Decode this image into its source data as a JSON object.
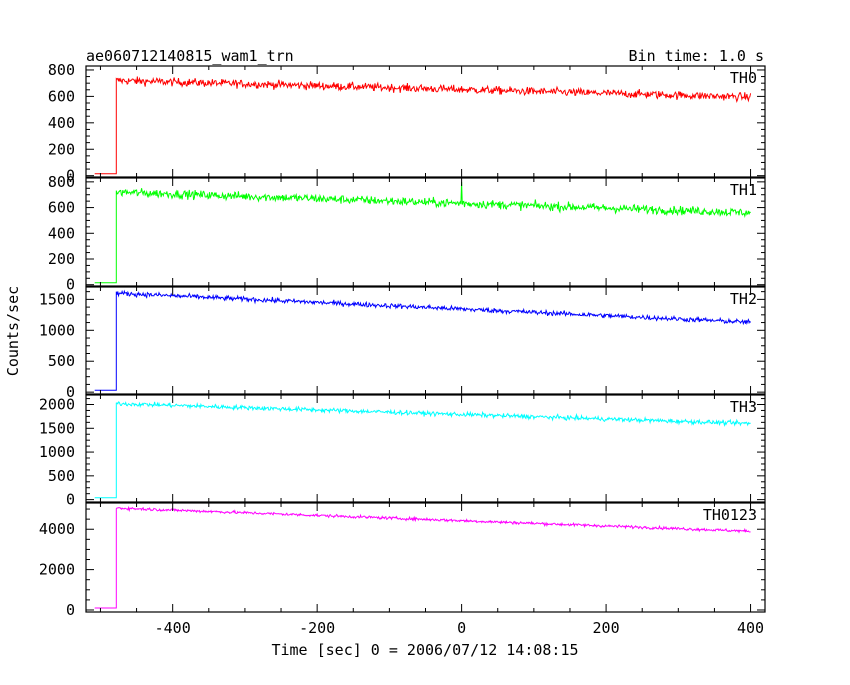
{
  "header": {
    "title": "ae060712140815_wam1_trn",
    "bin_time": "Bin time: 1.0 s"
  },
  "ylabel": "Counts/sec",
  "xlabel": "Time [sec] 0 = 2006/07/12 14:08:15",
  "chart_data": {
    "type": "line",
    "x_range": [
      -520,
      420
    ],
    "x_ticks": [
      -400,
      -200,
      0,
      200,
      400
    ],
    "onset_time": -478,
    "data_end_time": 400,
    "series": [
      {
        "name": "TH0",
        "color": "#ff0000",
        "ylim": [
          -10,
          830
        ],
        "y_ticks": [
          0,
          200,
          400,
          600,
          800
        ],
        "pre_onset": 15,
        "start": 720,
        "end": 595,
        "noise": 30,
        "spikes": []
      },
      {
        "name": "TH1",
        "color": "#00ff00",
        "ylim": [
          -10,
          830
        ],
        "y_ticks": [
          0,
          200,
          400,
          600,
          800
        ],
        "pre_onset": 15,
        "start": 720,
        "end": 560,
        "noise": 33,
        "spikes": [
          {
            "t": 0,
            "v": 800
          }
        ]
      },
      {
        "name": "TH2",
        "color": "#0000ff",
        "ylim": [
          -30,
          1700
        ],
        "y_ticks": [
          0,
          500,
          1000,
          1500
        ],
        "pre_onset": 30,
        "start": 1600,
        "end": 1130,
        "noise": 38,
        "spikes": []
      },
      {
        "name": "TH3",
        "color": "#00ffff",
        "ylim": [
          -50,
          2200
        ],
        "y_ticks": [
          0,
          500,
          1000,
          1500,
          2000
        ],
        "pre_onset": 40,
        "start": 2020,
        "end": 1600,
        "noise": 45,
        "spikes": []
      },
      {
        "name": "TH0123",
        "color": "#ff00ff",
        "ylim": [
          -100,
          5300
        ],
        "y_ticks": [
          0,
          2000,
          4000
        ],
        "pre_onset": 100,
        "start": 5050,
        "end": 3900,
        "noise": 70,
        "spikes": []
      }
    ]
  }
}
